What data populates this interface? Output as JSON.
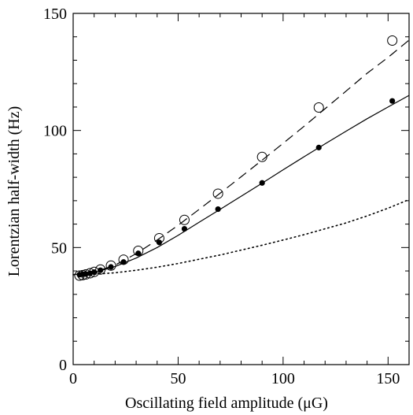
{
  "chart_data": {
    "type": "scatter",
    "xlabel": "Oscillating field amplitude (μG)",
    "ylabel": "Lorentzian half-width (Hz)",
    "xlim": [
      0,
      160
    ],
    "ylim": [
      0,
      150
    ],
    "x_ticks": [
      0,
      50,
      100,
      150
    ],
    "y_ticks": [
      0,
      50,
      100,
      150
    ],
    "x_tick_labels": [
      "0",
      "50",
      "100",
      "150"
    ],
    "y_tick_labels": [
      "0",
      "50",
      "100",
      "150"
    ],
    "grid": false,
    "series": [
      {
        "marker": "open-circle",
        "points": [
          [
            3,
            38
          ],
          [
            4.5,
            38.2
          ],
          [
            6,
            38.5
          ],
          [
            8,
            39
          ],
          [
            10,
            39.6
          ],
          [
            13,
            40.6
          ],
          [
            18,
            42.3
          ],
          [
            24,
            44.8
          ],
          [
            31,
            48.6
          ],
          [
            41,
            54
          ],
          [
            53,
            61.8
          ],
          [
            69,
            73
          ],
          [
            90,
            88.7
          ],
          [
            117,
            109.8
          ],
          [
            152,
            138.4
          ]
        ]
      },
      {
        "marker": "filled-circle",
        "points": [
          [
            3,
            38.4
          ],
          [
            4.5,
            38.6
          ],
          [
            6,
            38.7
          ],
          [
            8,
            39
          ],
          [
            10,
            39.5
          ],
          [
            13,
            40.3
          ],
          [
            18,
            41.7
          ],
          [
            24,
            43.8
          ],
          [
            31,
            47.5
          ],
          [
            41,
            52.2
          ],
          [
            53,
            58
          ],
          [
            69,
            66.4
          ],
          [
            90,
            77.6
          ],
          [
            117,
            92.7
          ],
          [
            152,
            112.6
          ]
        ]
      },
      {
        "style": "dashed",
        "points": [
          [
            0,
            38.4
          ],
          [
            10,
            39.5
          ],
          [
            20,
            42.5
          ],
          [
            30,
            47.4
          ],
          [
            40,
            53.2
          ],
          [
            50,
            59.5
          ],
          [
            60,
            66.3
          ],
          [
            70,
            73.2
          ],
          [
            80,
            80.2
          ],
          [
            90,
            87.3
          ],
          [
            100,
            94.5
          ],
          [
            110,
            101.8
          ],
          [
            120,
            109.3
          ],
          [
            130,
            116.8
          ],
          [
            140,
            124.4
          ],
          [
            150,
            131.2
          ],
          [
            160,
            138.6
          ]
        ]
      },
      {
        "style": "solid",
        "points": [
          [
            0,
            38.4
          ],
          [
            10,
            39.3
          ],
          [
            20,
            41.9
          ],
          [
            30,
            45.5
          ],
          [
            40,
            50
          ],
          [
            50,
            55.2
          ],
          [
            60,
            60.8
          ],
          [
            70,
            66.3
          ],
          [
            80,
            71.9
          ],
          [
            90,
            77.5
          ],
          [
            100,
            83.2
          ],
          [
            110,
            88.8
          ],
          [
            120,
            94.3
          ],
          [
            130,
            99.7
          ],
          [
            140,
            105
          ],
          [
            150,
            110
          ],
          [
            160,
            115
          ]
        ]
      },
      {
        "style": "dotted",
        "points": [
          [
            0,
            38.4
          ],
          [
            10,
            38.6
          ],
          [
            20,
            39.2
          ],
          [
            30,
            40.3
          ],
          [
            40,
            41.6
          ],
          [
            50,
            43.2
          ],
          [
            60,
            45
          ],
          [
            70,
            46.8
          ],
          [
            80,
            48.9
          ],
          [
            90,
            51
          ],
          [
            100,
            53.2
          ],
          [
            110,
            55.5
          ],
          [
            120,
            58
          ],
          [
            130,
            60.5
          ],
          [
            140,
            63.5
          ],
          [
            150,
            66.8
          ],
          [
            160,
            70.5
          ]
        ]
      }
    ]
  }
}
